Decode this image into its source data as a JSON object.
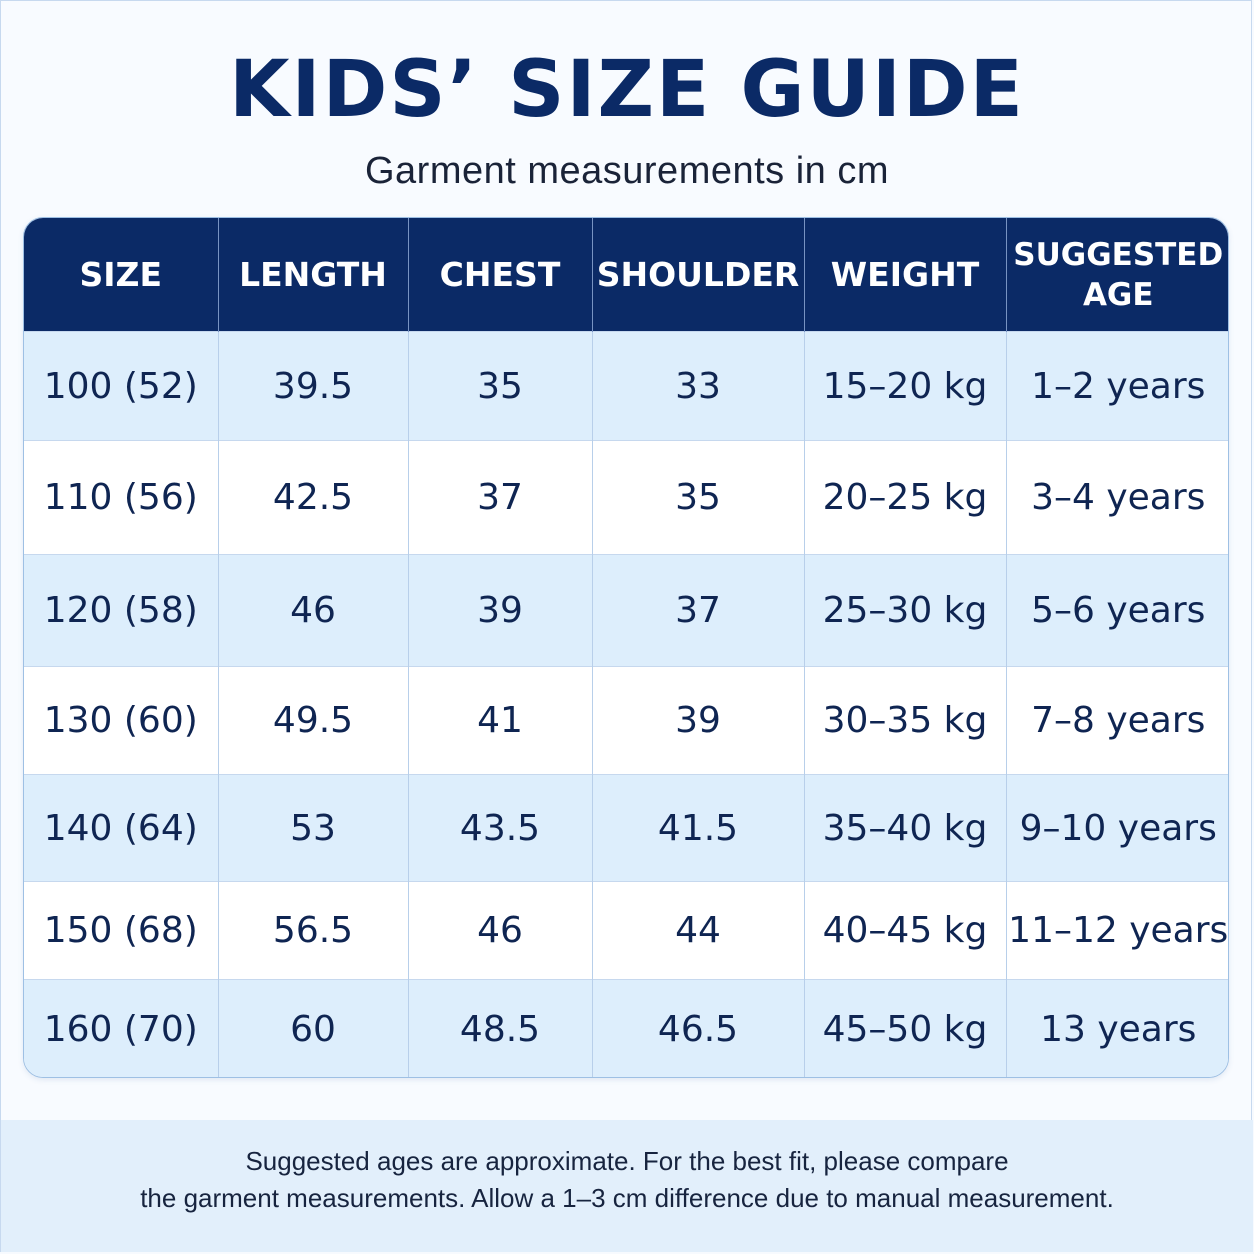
{
  "title": "KIDS’ SIZE GUIDE",
  "subtitle": "Garment measurements in cm",
  "table": {
    "headers": [
      "SIZE",
      "LENGTH",
      "CHEST",
      "SHOULDER",
      "WEIGHT",
      "SUGGESTED",
      "AGE"
    ],
    "rows": [
      [
        "100 (52)",
        "39.5",
        "35",
        "33",
        "15–20 kg",
        "1–2 years"
      ],
      [
        "110 (56)",
        "42.5",
        "37",
        "35",
        "20–25 kg",
        "3–4 years"
      ],
      [
        "120 (58)",
        "46",
        "39",
        "37",
        "25–30 kg",
        "5–6 years"
      ],
      [
        "130 (60)",
        "49.5",
        "41",
        "39",
        "30–35 kg",
        "7–8 years"
      ],
      [
        "140 (64)",
        "53",
        "43.5",
        "41.5",
        "35–40 kg",
        "9–10 years"
      ],
      [
        "150 (68)",
        "56.5",
        "46",
        "44",
        "40–45 kg",
        "11–12 years"
      ],
      [
        "160 (70)",
        "60",
        "48.5",
        "46.5",
        "45–50 kg",
        "13 years"
      ]
    ]
  },
  "footer": {
    "line1": "Suggested ages are approximate. For the best fit, please compare",
    "line2": "the garment measurements. Allow a 1–3 cm difference due to manual measurement."
  },
  "colors": {
    "header_bg": "#0b2a66",
    "title": "#0b2a66",
    "row_stripe": "#ddeefc",
    "footer_bg": "#e2effb"
  }
}
